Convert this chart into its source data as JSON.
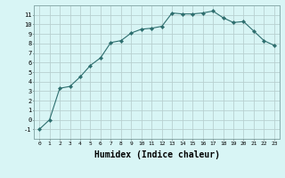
{
  "x": [
    0,
    1,
    2,
    3,
    4,
    5,
    6,
    7,
    8,
    9,
    10,
    11,
    12,
    13,
    14,
    15,
    16,
    17,
    18,
    19,
    20,
    21,
    22,
    23
  ],
  "y": [
    -1,
    0,
    3.3,
    3.5,
    4.5,
    5.7,
    6.5,
    8.1,
    8.3,
    9.1,
    9.5,
    9.6,
    9.8,
    11.2,
    11.1,
    11.1,
    11.2,
    11.4,
    10.7,
    10.2,
    10.3,
    9.3,
    8.3,
    7.8
  ],
  "line_color": "#2d6e6e",
  "marker": "D",
  "marker_size": 2.2,
  "bg_color": "#d8f5f5",
  "grid_color": "#b8d0d0",
  "xlabel": "Humidex (Indice chaleur)",
  "xlabel_fontsize": 7,
  "xlim": [
    -0.5,
    23.5
  ],
  "ylim": [
    -2,
    12
  ],
  "yticks": [
    -1,
    0,
    1,
    2,
    3,
    4,
    5,
    6,
    7,
    8,
    9,
    10,
    11
  ],
  "xticks": [
    0,
    1,
    2,
    3,
    4,
    5,
    6,
    7,
    8,
    9,
    10,
    11,
    12,
    13,
    14,
    15,
    16,
    17,
    18,
    19,
    20,
    21,
    22,
    23
  ]
}
